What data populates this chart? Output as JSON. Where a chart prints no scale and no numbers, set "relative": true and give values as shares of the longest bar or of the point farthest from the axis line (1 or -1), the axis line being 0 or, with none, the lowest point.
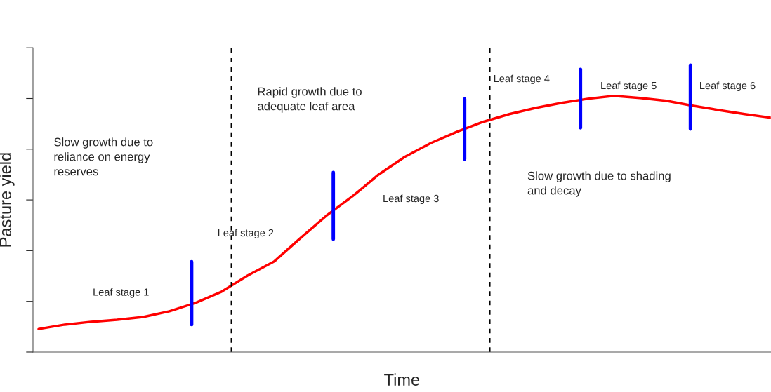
{
  "chart_data": {
    "type": "line",
    "relative": true,
    "xlabel": "Time",
    "ylabel": "Pasture yield",
    "tick_labels": false,
    "grid": false,
    "legend": false,
    "categories": [
      null,
      null,
      null,
      null,
      null,
      null,
      null,
      null,
      null,
      null,
      null,
      null,
      null,
      null,
      null,
      null,
      null,
      null,
      null,
      null,
      null,
      null,
      null,
      null,
      null,
      null,
      null,
      null,
      null
    ],
    "series": [
      {
        "color": "#ff0000",
        "values": [
          0.09,
          0.107,
          0.118,
          0.126,
          0.137,
          0.159,
          0.192,
          0.236,
          0.299,
          0.353,
          0.444,
          0.532,
          0.608,
          0.693,
          0.762,
          0.816,
          0.86,
          0.899,
          0.929,
          0.953,
          0.973,
          0.989,
          1,
          0.992,
          0.981,
          0.962,
          0.945,
          0.929,
          0.915
        ]
      }
    ],
    "annotations": [
      "Leaf stage 1",
      "Leaf stage 2",
      "Leaf stage 3",
      "Leaf stage 4",
      "Leaf stage 5",
      "Leaf stage 6",
      "Slow growth due to\nreliance on energy\nreserves",
      "Rapid growth due to\nadequate leaf area",
      "Slow growth due to shading\nand decay"
    ]
  }
}
